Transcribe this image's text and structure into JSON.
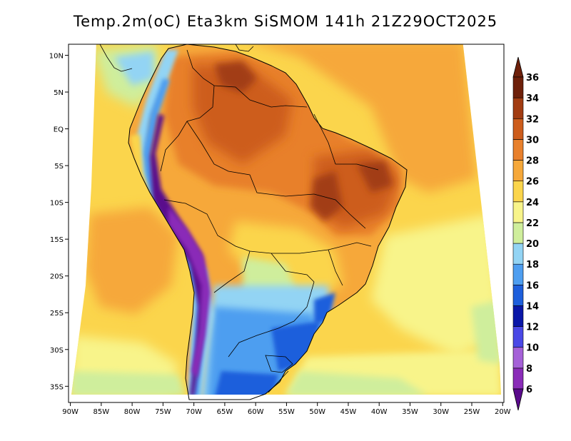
{
  "title": "Temp.2m(oC) Eta3km SiSMOM 141h 21Z29OCT2025",
  "map": {
    "lon_range": [
      -90,
      -20
    ],
    "lat_range": [
      -37,
      11
    ],
    "lon_ticks": [
      {
        "value": -90,
        "label": "90W"
      },
      {
        "value": -85,
        "label": "85W"
      },
      {
        "value": -80,
        "label": "80W"
      },
      {
        "value": -75,
        "label": "75W"
      },
      {
        "value": -70,
        "label": "70W"
      },
      {
        "value": -65,
        "label": "65W"
      },
      {
        "value": -60,
        "label": "60W"
      },
      {
        "value": -55,
        "label": "55W"
      },
      {
        "value": -50,
        "label": "50W"
      },
      {
        "value": -45,
        "label": "45W"
      },
      {
        "value": -40,
        "label": "40W"
      },
      {
        "value": -35,
        "label": "35W"
      },
      {
        "value": -30,
        "label": "30W"
      },
      {
        "value": -25,
        "label": "25W"
      },
      {
        "value": -20,
        "label": "20W"
      }
    ],
    "lat_ticks": [
      {
        "value": 10,
        "label": "10N"
      },
      {
        "value": 5,
        "label": "5N"
      },
      {
        "value": 0,
        "label": "EQ"
      },
      {
        "value": -5,
        "label": "5S"
      },
      {
        "value": -10,
        "label": "10S"
      },
      {
        "value": -15,
        "label": "15S"
      },
      {
        "value": -20,
        "label": "20S"
      },
      {
        "value": -25,
        "label": "25S"
      },
      {
        "value": -30,
        "label": "30S"
      },
      {
        "value": -35,
        "label": "35S"
      }
    ]
  },
  "colorbar": {
    "levels": [
      {
        "label": "6",
        "color": "#5a0a8c"
      },
      {
        "label": "8",
        "color": "#8a2cb8"
      },
      {
        "label": "10",
        "color": "#a561d8"
      },
      {
        "label": "12",
        "color": "#4a48e6"
      },
      {
        "label": "14",
        "color": "#0a17a8"
      },
      {
        "label": "16",
        "color": "#1e5fdc"
      },
      {
        "label": "18",
        "color": "#4e9ef0"
      },
      {
        "label": "20",
        "color": "#93d4f4"
      },
      {
        "label": "22",
        "color": "#cfee9c"
      },
      {
        "label": "24",
        "color": "#f8f48a"
      },
      {
        "label": "26",
        "color": "#fbd54c"
      },
      {
        "label": "28",
        "color": "#f6a83a"
      },
      {
        "label": "30",
        "color": "#e8802c"
      },
      {
        "label": "32",
        "color": "#cd5d1c"
      },
      {
        "label": "34",
        "color": "#a23c12"
      },
      {
        "label": "36",
        "color": "#6e200a"
      }
    ],
    "under_color": "#5a0a8c",
    "over_color": "#6e200a"
  }
}
